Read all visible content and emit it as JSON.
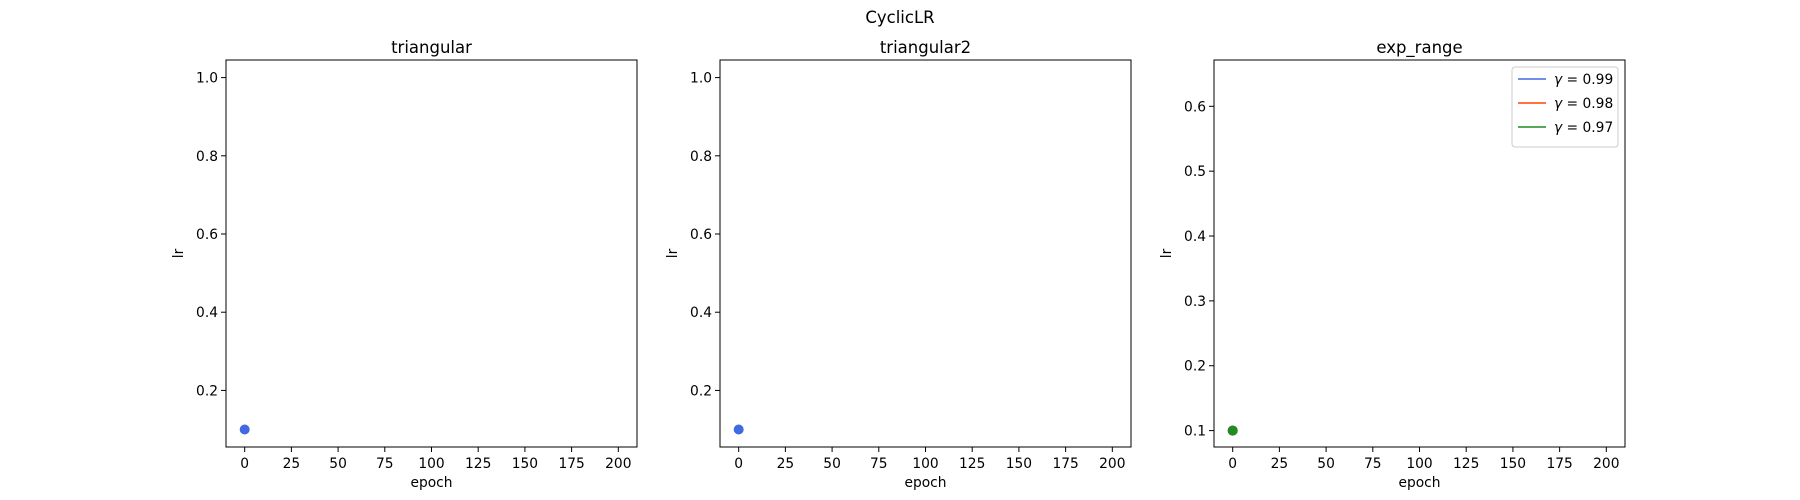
{
  "figure": {
    "suptitle": "CyclicLR"
  },
  "chart_data": [
    {
      "type": "scatter",
      "title": "triangular",
      "xlabel": "epoch",
      "ylabel": "lr",
      "xlim": [
        -10,
        210
      ],
      "ylim": [
        0.0553,
        1.045
      ],
      "xticks": [
        0,
        25,
        50,
        75,
        100,
        125,
        150,
        175,
        200
      ],
      "yticks": [
        0.2,
        0.4,
        0.6,
        0.8,
        1.0
      ],
      "ytick_labels": [
        "0.2",
        "0.4",
        "0.6",
        "0.8",
        "1.0"
      ],
      "grid": false,
      "series": [
        {
          "color": "#4169e1",
          "points": [
            [
              0,
              0.1
            ]
          ]
        }
      ]
    },
    {
      "type": "scatter",
      "title": "triangular2",
      "xlabel": "epoch",
      "ylabel": "lr",
      "xlim": [
        -10,
        210
      ],
      "ylim": [
        0.0553,
        1.045
      ],
      "xticks": [
        0,
        25,
        50,
        75,
        100,
        125,
        150,
        175,
        200
      ],
      "yticks": [
        0.2,
        0.4,
        0.6,
        0.8,
        1.0
      ],
      "ytick_labels": [
        "0.2",
        "0.4",
        "0.6",
        "0.8",
        "1.0"
      ],
      "grid": false,
      "series": [
        {
          "color": "#4169e1",
          "points": [
            [
              0,
              0.1
            ]
          ]
        }
      ]
    },
    {
      "type": "scatter",
      "title": "exp_range",
      "xlabel": "epoch",
      "ylabel": "lr",
      "xlim": [
        -10,
        210
      ],
      "ylim": [
        0.0747,
        0.6714
      ],
      "xticks": [
        0,
        25,
        50,
        75,
        100,
        125,
        150,
        175,
        200
      ],
      "yticks": [
        0.1,
        0.2,
        0.3,
        0.4,
        0.5,
        0.6
      ],
      "ytick_labels": [
        "0.1",
        "0.2",
        "0.3",
        "0.4",
        "0.5",
        "0.6"
      ],
      "grid": false,
      "legend": {
        "location": "top-right",
        "entries": [
          {
            "gamma_symbol": "γ",
            "value_text": " = 0.99",
            "color": "#4169e1"
          },
          {
            "gamma_symbol": "γ",
            "value_text": " = 0.98",
            "color": "#ff4500"
          },
          {
            "gamma_symbol": "γ",
            "value_text": " = 0.97",
            "color": "#228b22"
          }
        ]
      },
      "series": [
        {
          "color": "#4169e1",
          "points": [
            [
              0,
              0.1
            ]
          ]
        },
        {
          "color": "#ff4500",
          "points": [
            [
              0,
              0.1
            ]
          ]
        },
        {
          "color": "#228b22",
          "points": [
            [
              0,
              0.1
            ]
          ]
        }
      ]
    }
  ]
}
